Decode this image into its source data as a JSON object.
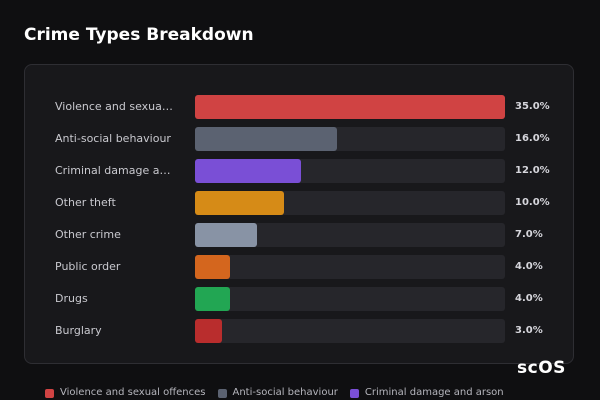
{
  "chart_data": {
    "type": "bar",
    "orientation": "horizontal",
    "title": "Crime Types Breakdown",
    "categories": [
      "Violence and sexual offences",
      "Anti-social behaviour",
      "Criminal damage and arson",
      "Other theft",
      "Other crime",
      "Public order",
      "Drugs",
      "Burglary"
    ],
    "values": [
      35,
      16,
      12,
      10,
      7,
      4,
      4,
      3
    ],
    "value_labels": [
      "35.0%",
      "16.0%",
      "12.0%",
      "10.0%",
      "7.0%",
      "4.0%",
      "4.0%",
      "3.0%"
    ],
    "colors": [
      "#d04343",
      "#5b6271",
      "#7a4fd6",
      "#d68b17",
      "#8893a5",
      "#d4661e",
      "#22a653",
      "#b92d2d"
    ],
    "xlim": [
      0,
      35
    ],
    "watermark": "scOS"
  }
}
